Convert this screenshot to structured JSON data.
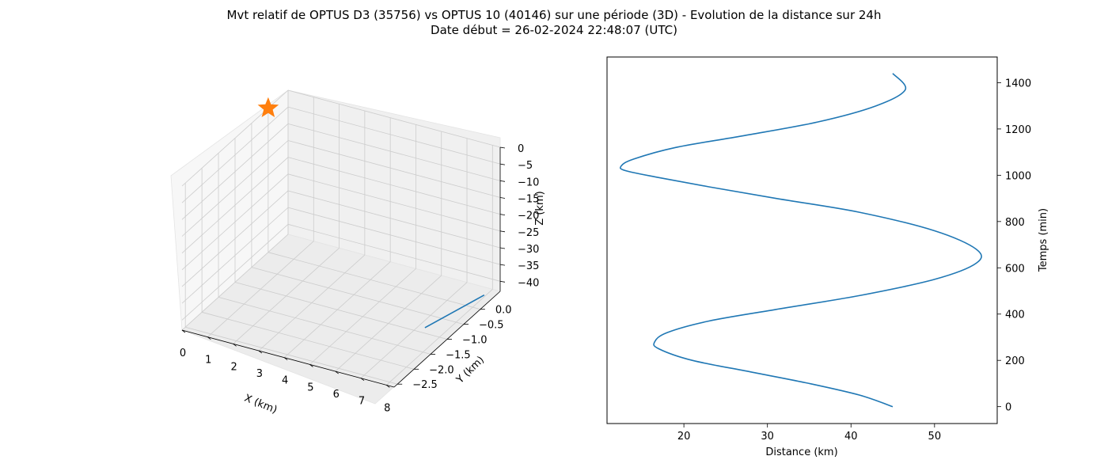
{
  "figure": {
    "title_line1": "Mvt relatif de OPTUS D3 (35756) vs OPTUS 10 (40146) sur une période (3D) - Evolution de la distance sur 24h",
    "title_line2": "Date début = 26-02-2024 22:48:07 (UTC)"
  },
  "colors": {
    "line": "#1f77b4",
    "marker": "#ff7f0e",
    "pane": "#f2f2f2",
    "grid": "#cccccc"
  },
  "chart_data": [
    {
      "type": "line3d",
      "xlabel": "X (km)",
      "ylabel": "Y (km)",
      "zlabel": "Z (km)",
      "xlim": [
        0,
        8.3
      ],
      "ylim": [
        -2.6,
        0.6
      ],
      "zlim": [
        -43,
        0
      ],
      "x_ticks": [
        "0",
        "1",
        "2",
        "3",
        "4",
        "5",
        "6",
        "7",
        "8"
      ],
      "y_ticks": [
        "0.0",
        "−0.5",
        "−1.0",
        "−1.5",
        "−2.0",
        "−2.5"
      ],
      "z_ticks": [
        "0",
        "−5",
        "−10",
        "−15",
        "−20",
        "−25",
        "−30",
        "−35",
        "−40"
      ],
      "grid": true,
      "series": [
        {
          "points": [
            [
              7.3,
              -0.9,
              -42.5
            ],
            [
              8.0,
              0.35,
              -42.5
            ]
          ]
        }
      ],
      "marker": {
        "shape": "star",
        "point": [
          0,
          0,
          0
        ]
      }
    },
    {
      "type": "line",
      "xlabel": "Distance (km)",
      "ylabel": "Temps (min)",
      "xlim": [
        10.8,
        57.5
      ],
      "ylim": [
        -73,
        1511
      ],
      "x_ticks": [
        20,
        30,
        40,
        50
      ],
      "y_ticks": [
        0,
        200,
        400,
        600,
        800,
        1000,
        1200,
        1400
      ],
      "y_axis_side": "right",
      "grid": false,
      "series": [
        {
          "x": [
            45,
            41,
            35,
            28,
            21,
            17,
            16.5,
            18,
            23,
            31,
            41,
            50,
            55,
            55,
            50,
            41,
            31,
            23,
            17,
            13,
            12.5,
            14,
            19,
            27,
            36,
            43,
            46.5,
            45
          ],
          "y": [
            0,
            50,
            100,
            150,
            200,
            250,
            280,
            320,
            370,
            420,
            480,
            550,
            620,
            680,
            760,
            840,
            900,
            950,
            990,
            1020,
            1040,
            1070,
            1120,
            1170,
            1230,
            1300,
            1370,
            1440
          ]
        }
      ]
    }
  ]
}
